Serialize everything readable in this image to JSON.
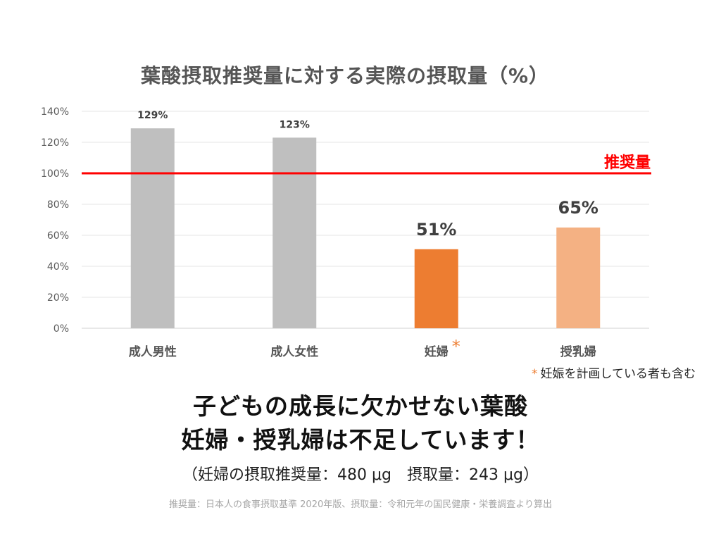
{
  "chart_data": {
    "type": "bar",
    "title": "葉酸摂取推奨量に対する実際の摂取量（%）",
    "categories": [
      "成人男性",
      "成人女性",
      "妊婦",
      "授乳婦"
    ],
    "values": [
      129,
      123,
      51,
      65
    ],
    "value_labels": [
      "129%",
      "123%",
      "51%",
      "65%"
    ],
    "bar_colors": [
      "#bfbfbf",
      "#bfbfbf",
      "#ed7d31",
      "#f4b183"
    ],
    "category_marks": [
      "",
      "",
      "*",
      ""
    ],
    "y_ticks": [
      "0%",
      "20%",
      "40%",
      "60%",
      "80%",
      "100%",
      "120%",
      "140%"
    ],
    "ylim": [
      0,
      140
    ],
    "grid": true,
    "reference_line": {
      "value": 100,
      "label": "推奨量",
      "color": "#ff0000"
    }
  },
  "note": {
    "asterisk": "*",
    "text": "妊娠を計画している者も含む",
    "asterisk_color": "#ed7d31"
  },
  "headline": {
    "line1": "子どもの成長に欠かせない葉酸",
    "line2": "妊婦・授乳婦は不足しています！"
  },
  "subtext": "（妊婦の摂取推奨量：480 μg　摂取量：243 μg）",
  "source": "推奨量：日本人の食事摂取基準 2020年版、摂取量：令和元年の国民健康・栄養調査より算出"
}
